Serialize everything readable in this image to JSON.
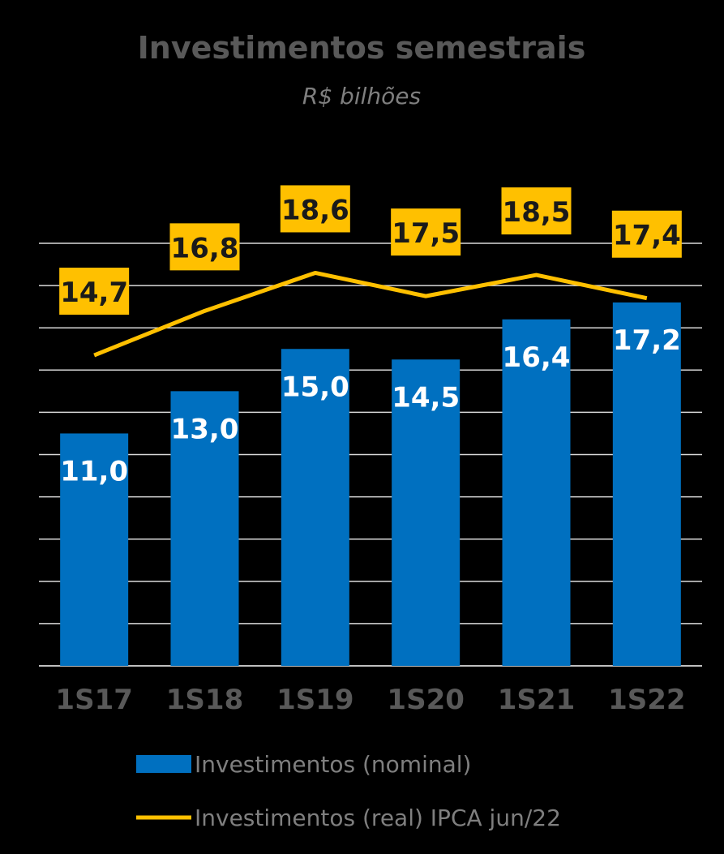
{
  "chart_data": {
    "type": "bar",
    "title": "Investimentos semestrais",
    "subtitle": "R$ bilhões",
    "categories": [
      "1S17",
      "1S18",
      "1S19",
      "1S20",
      "1S21",
      "1S22"
    ],
    "ylim": [
      0,
      20
    ],
    "grid": true,
    "series": [
      {
        "name": "Investimentos (nominal)",
        "type": "bar",
        "color": "#0070c0",
        "values": [
          11.0,
          13.0,
          15.0,
          14.5,
          16.4,
          17.2
        ],
        "labels": [
          "11,0",
          "13,0",
          "15,0",
          "14,5",
          "16,4",
          "17,2"
        ]
      },
      {
        "name": "Investimentos (real) IPCA jun/22",
        "type": "line",
        "color": "#ffc000",
        "values": [
          14.7,
          16.8,
          18.6,
          17.5,
          18.5,
          17.4
        ],
        "labels": [
          "14,7",
          "16,8",
          "18,6",
          "17,5",
          "18,5",
          "17,4"
        ]
      }
    ],
    "legend_position": "bottom"
  }
}
